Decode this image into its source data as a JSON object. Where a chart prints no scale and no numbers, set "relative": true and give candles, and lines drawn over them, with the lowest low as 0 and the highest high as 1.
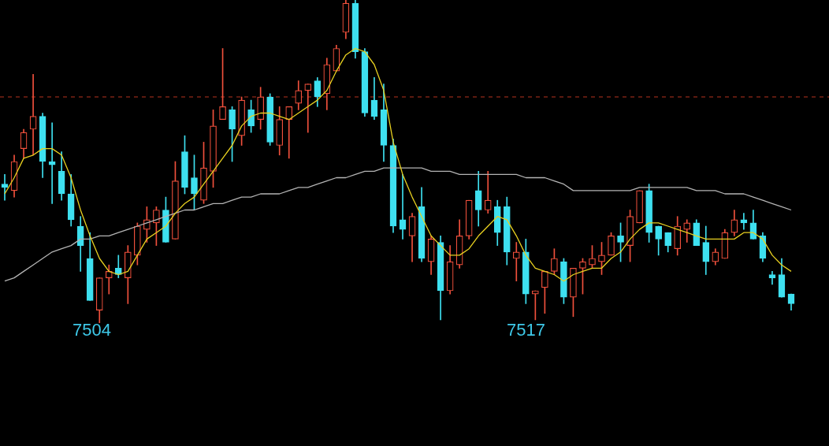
{
  "chart_data": {
    "type": "candlestick",
    "relative": true,
    "tick_labels": false,
    "categories": [
      null,
      null,
      null,
      null,
      null,
      null,
      null,
      null,
      null,
      null,
      null,
      null,
      null,
      null,
      null,
      null,
      null,
      null,
      null,
      null,
      null,
      null,
      null,
      null,
      null,
      null,
      null,
      null,
      null,
      null,
      null,
      null,
      null,
      null,
      null,
      null,
      null,
      null,
      null,
      null,
      null,
      null,
      null,
      null,
      null,
      null,
      null,
      null,
      null,
      null,
      null,
      null,
      null,
      null,
      null,
      null,
      null,
      null,
      null,
      null,
      null,
      null,
      null,
      null,
      null,
      null,
      null,
      null,
      null,
      null,
      null,
      null,
      null,
      null,
      null,
      null,
      null,
      null,
      null,
      null,
      null,
      null,
      null,
      null
    ],
    "ohlc": [
      [
        0.43,
        0.46,
        0.38,
        0.42
      ],
      [
        0.41,
        0.52,
        0.39,
        0.5
      ],
      [
        0.54,
        0.6,
        0.51,
        0.59
      ],
      [
        0.6,
        0.77,
        0.52,
        0.64
      ],
      [
        0.64,
        0.65,
        0.45,
        0.5
      ],
      [
        0.5,
        0.62,
        0.37,
        0.49
      ],
      [
        0.47,
        0.53,
        0.38,
        0.4
      ],
      [
        0.4,
        0.46,
        0.3,
        0.32
      ],
      [
        0.3,
        0.33,
        0.16,
        0.24
      ],
      [
        0.2,
        0.28,
        0.07,
        0.07
      ],
      [
        0.04,
        0.14,
        0,
        0.14
      ],
      [
        0.14,
        0.18,
        0.09,
        0.16
      ],
      [
        0.17,
        0.21,
        0.14,
        0.15
      ],
      [
        0.14,
        0.24,
        0.06,
        0.22
      ],
      [
        0.21,
        0.31,
        0.18,
        0.3
      ],
      [
        0.29,
        0.36,
        0.25,
        0.32
      ],
      [
        0.31,
        0.36,
        0.24,
        0.35
      ],
      [
        0.35,
        0.39,
        0.25,
        0.25
      ],
      [
        0.26,
        0.5,
        0.26,
        0.44
      ],
      [
        0.53,
        0.58,
        0.4,
        0.42
      ],
      [
        0.45,
        0.52,
        0.35,
        0.4
      ],
      [
        0.38,
        0.56,
        0.37,
        0.48
      ],
      [
        0.47,
        0.66,
        0.42,
        0.61
      ],
      [
        0.63,
        0.85,
        0.63,
        0.67
      ],
      [
        0.66,
        0.67,
        0.5,
        0.6
      ],
      [
        0.58,
        0.7,
        0.55,
        0.69
      ],
      [
        0.66,
        0.69,
        0.59,
        0.61
      ],
      [
        0.63,
        0.73,
        0.6,
        0.7
      ],
      [
        0.7,
        0.71,
        0.55,
        0.56
      ],
      [
        0.55,
        0.67,
        0.52,
        0.63
      ],
      [
        0.63,
        0.67,
        0.51,
        0.67
      ],
      [
        0.68,
        0.75,
        0.66,
        0.72
      ],
      [
        0.72,
        0.74,
        0.59,
        0.74
      ],
      [
        0.75,
        0.76,
        0.67,
        0.7
      ],
      [
        0.71,
        0.82,
        0.66,
        0.8
      ],
      [
        0.78,
        0.86,
        0.78,
        0.85
      ],
      [
        0.9,
        1,
        0.88,
        0.99
      ],
      [
        0.99,
        1,
        0.82,
        0.84
      ],
      [
        0.84,
        0.85,
        0.64,
        0.65
      ],
      [
        0.69,
        0.76,
        0.63,
        0.64
      ],
      [
        0.66,
        0.74,
        0.5,
        0.55
      ],
      [
        0.55,
        0.57,
        0.28,
        0.3
      ],
      [
        0.32,
        0.46,
        0.26,
        0.29
      ],
      [
        0.27,
        0.34,
        0.19,
        0.33
      ],
      [
        0.36,
        0.42,
        0.19,
        0.2
      ],
      [
        0.19,
        0.27,
        0.15,
        0.26
      ],
      [
        0.25,
        0.27,
        0.01,
        0.1
      ],
      [
        0.1,
        0.24,
        0.09,
        0.19
      ],
      [
        0.18,
        0.32,
        0.17,
        0.27
      ],
      [
        0.27,
        0.38,
        0.26,
        0.38
      ],
      [
        0.41,
        0.47,
        0.3,
        0.35
      ],
      [
        0.35,
        0.47,
        0.34,
        0.38
      ],
      [
        0.36,
        0.38,
        0.24,
        0.28
      ],
      [
        0.36,
        0.39,
        0.18,
        0.22
      ],
      [
        0.2,
        0.25,
        0.13,
        0.22
      ],
      [
        0.22,
        0.26,
        0.06,
        0.09
      ],
      [
        0.09,
        0.1,
        0.01,
        0.1
      ],
      [
        0.11,
        0.16,
        0.03,
        0.16
      ],
      [
        0.16,
        0.23,
        0.15,
        0.2
      ],
      [
        0.19,
        0.2,
        0.06,
        0.08
      ],
      [
        0.08,
        0.17,
        0.02,
        0.17
      ],
      [
        0.17,
        0.2,
        0.09,
        0.19
      ],
      [
        0.18,
        0.24,
        0.17,
        0.2
      ],
      [
        0.19,
        0.25,
        0.15,
        0.21
      ],
      [
        0.21,
        0.28,
        0.21,
        0.27
      ],
      [
        0.27,
        0.31,
        0.19,
        0.25
      ],
      [
        0.24,
        0.35,
        0.19,
        0.33
      ],
      [
        0.31,
        0.41,
        0.31,
        0.41
      ],
      [
        0.41,
        0.43,
        0.25,
        0.28
      ],
      [
        0.3,
        0.3,
        0.21,
        0.26
      ],
      [
        0.28,
        0.28,
        0.22,
        0.24
      ],
      [
        0.23,
        0.33,
        0.21,
        0.3
      ],
      [
        0.29,
        0.32,
        0.25,
        0.31
      ],
      [
        0.31,
        0.32,
        0.24,
        0.24
      ],
      [
        0.25,
        0.3,
        0.15,
        0.19
      ],
      [
        0.19,
        0.23,
        0.18,
        0.22
      ],
      [
        0.2,
        0.29,
        0.2,
        0.28
      ],
      [
        0.28,
        0.35,
        0.27,
        0.32
      ],
      [
        0.32,
        0.34,
        0.29,
        0.31
      ],
      [
        0.31,
        0.35,
        0.26,
        0.26
      ],
      [
        0.27,
        0.28,
        0.19,
        0.2
      ],
      [
        0.15,
        0.16,
        0.12,
        0.14
      ],
      [
        0.15,
        0.2,
        0.08,
        0.08
      ],
      [
        0.09,
        0.09,
        0.04,
        0.06
      ]
    ],
    "colors": [
      "#3ee0f0",
      "#f0503c",
      "#f0503c",
      "#f0503c",
      "#3ee0f0",
      "#3ee0f0",
      "#3ee0f0",
      "#3ee0f0",
      "#3ee0f0",
      "#3ee0f0",
      "#f0503c",
      "#f0503c",
      "#3ee0f0",
      "#f0503c",
      "#f0503c",
      "#f0503c",
      "#f0503c",
      "#3ee0f0",
      "#f0503c",
      "#3ee0f0",
      "#3ee0f0",
      "#f0503c",
      "#f0503c",
      "#f0503c",
      "#3ee0f0",
      "#f0503c",
      "#3ee0f0",
      "#f0503c",
      "#3ee0f0",
      "#f0503c",
      "#f0503c",
      "#f0503c",
      "#f0503c",
      "#3ee0f0",
      "#f0503c",
      "#f0503c",
      "#f0503c",
      "#3ee0f0",
      "#3ee0f0",
      "#3ee0f0",
      "#3ee0f0",
      "#3ee0f0",
      "#3ee0f0",
      "#f0503c",
      "#3ee0f0",
      "#f0503c",
      "#3ee0f0",
      "#f0503c",
      "#f0503c",
      "#f0503c",
      "#3ee0f0",
      "#f0503c",
      "#3ee0f0",
      "#3ee0f0",
      "#f0503c",
      "#3ee0f0",
      "#f0503c",
      "#f0503c",
      "#f0503c",
      "#3ee0f0",
      "#f0503c",
      "#f0503c",
      "#f0503c",
      "#f0503c",
      "#f0503c",
      "#3ee0f0",
      "#f0503c",
      "#f0503c",
      "#3ee0f0",
      "#3ee0f0",
      "#3ee0f0",
      "#f0503c",
      "#f0503c",
      "#3ee0f0",
      "#3ee0f0",
      "#f0503c",
      "#f0503c",
      "#f0503c",
      "#3ee0f0",
      "#3ee0f0",
      "#3ee0f0",
      "#3ee0f0",
      "#3ee0f0",
      "#3ee0f0"
    ],
    "series": [
      {
        "type": "line",
        "color": "#e8d020",
        "values": [
          0.4,
          0.45,
          0.51,
          0.52,
          0.54,
          0.54,
          0.52,
          0.45,
          0.35,
          0.27,
          0.2,
          0.16,
          0.15,
          0.16,
          0.21,
          0.26,
          0.28,
          0.3,
          0.34,
          0.37,
          0.39,
          0.43,
          0.47,
          0.51,
          0.55,
          0.61,
          0.64,
          0.65,
          0.65,
          0.64,
          0.63,
          0.65,
          0.67,
          0.69,
          0.72,
          0.78,
          0.83,
          0.85,
          0.84,
          0.8,
          0.72,
          0.56,
          0.46,
          0.39,
          0.33,
          0.27,
          0.24,
          0.21,
          0.21,
          0.23,
          0.27,
          0.3,
          0.33,
          0.32,
          0.27,
          0.21,
          0.17,
          0.16,
          0.15,
          0.13,
          0.15,
          0.16,
          0.17,
          0.17,
          0.2,
          0.22,
          0.26,
          0.29,
          0.31,
          0.31,
          0.3,
          0.29,
          0.28,
          0.27,
          0.26,
          0.26,
          0.26,
          0.26,
          0.28,
          0.28,
          0.26,
          0.21,
          0.18,
          0.16
        ]
      },
      {
        "type": "line",
        "color": "#b4b4b4",
        "values": [
          0.13,
          0.14,
          0.16,
          0.18,
          0.2,
          0.22,
          0.23,
          0.24,
          0.26,
          0.26,
          0.27,
          0.27,
          0.28,
          0.29,
          0.3,
          0.31,
          0.32,
          0.33,
          0.34,
          0.35,
          0.35,
          0.36,
          0.37,
          0.37,
          0.38,
          0.39,
          0.39,
          0.4,
          0.4,
          0.4,
          0.41,
          0.42,
          0.42,
          0.43,
          0.44,
          0.45,
          0.45,
          0.46,
          0.47,
          0.47,
          0.48,
          0.48,
          0.48,
          0.48,
          0.48,
          0.47,
          0.47,
          0.47,
          0.46,
          0.46,
          0.46,
          0.46,
          0.46,
          0.46,
          0.46,
          0.45,
          0.45,
          0.45,
          0.44,
          0.43,
          0.41,
          0.41,
          0.41,
          0.41,
          0.41,
          0.41,
          0.41,
          0.42,
          0.42,
          0.42,
          0.42,
          0.42,
          0.42,
          0.41,
          0.41,
          0.41,
          0.4,
          0.4,
          0.4,
          0.39,
          0.38,
          0.37,
          0.36,
          0.35
        ]
      }
    ],
    "ref_lines": [
      {
        "axis": "y",
        "value": 0.7,
        "color": "#b8321e",
        "line_style": "dashed"
      }
    ],
    "annotations": [
      "7504",
      "7517"
    ]
  }
}
